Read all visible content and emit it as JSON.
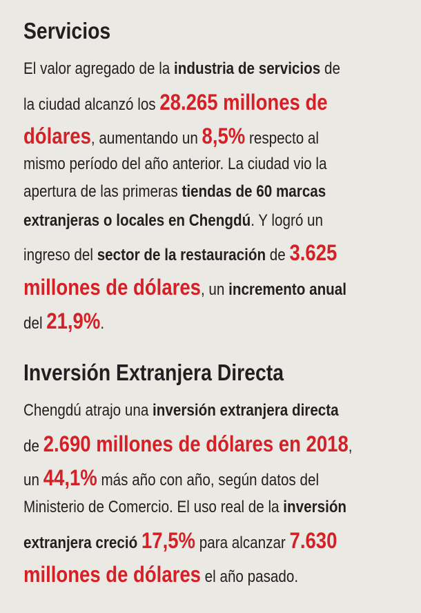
{
  "sections": [
    {
      "title": "Servicios",
      "lines": [
        [
          {
            "text": "El valor agregado de la "
          },
          {
            "text": "industria de servicios",
            "bold": true
          },
          {
            "text": " de"
          }
        ],
        [
          {
            "text": "la ciudad alcanzó los "
          },
          {
            "text": "28.265 millones de",
            "bold": true,
            "color": "#d42027"
          }
        ],
        [
          {
            "text": "dólares",
            "bold": true,
            "color": "#d42027"
          },
          {
            "text": ", aumentando un "
          },
          {
            "text": "8,5%",
            "bold": true,
            "color": "#d42027"
          },
          {
            "text": " respecto al"
          }
        ],
        [
          {
            "text": "mismo período del año anterior. La ciudad vio la"
          }
        ],
        [
          {
            "text": "apertura de las primeras "
          },
          {
            "text": "tiendas de 60 marcas",
            "bold": true
          }
        ],
        [
          {
            "text": "extranjeras o locales en Chengdú",
            "bold": true
          },
          {
            "text": ". Y logró un"
          }
        ],
        [
          {
            "text": "ingreso del "
          },
          {
            "text": "sector de la restauración",
            "bold": true
          },
          {
            "text": " de "
          },
          {
            "text": "3.625",
            "bold": true,
            "color": "#d42027"
          }
        ],
        [
          {
            "text": "millones de dólares",
            "bold": true,
            "color": "#d42027"
          },
          {
            "text": ", un "
          },
          {
            "text": "incremento anual",
            "bold": true
          }
        ],
        [
          {
            "text": "del "
          },
          {
            "text": "21,9%",
            "bold": true,
            "color": "#d42027"
          },
          {
            "text": "."
          }
        ]
      ]
    },
    {
      "title": "Inversión Extranjera Directa",
      "lines": [
        [
          {
            "text": "Chengdú atrajo una "
          },
          {
            "text": "inversión extranjera directa",
            "bold": true
          }
        ],
        [
          {
            "text": "de "
          },
          {
            "text": "2.690 millones de dólares en 2018",
            "bold": true,
            "color": "#d42027"
          },
          {
            "text": ","
          }
        ],
        [
          {
            "text": "un "
          },
          {
            "text": "44,1%",
            "bold": true,
            "color": "#d42027"
          },
          {
            "text": " más año con año, según datos del"
          }
        ],
        [
          {
            "text": "Ministerio de Comercio. El uso real de la "
          },
          {
            "text": "inversión",
            "bold": true
          }
        ],
        [
          {
            "text": "extranjera creció",
            "bold": true
          },
          {
            "text": " "
          },
          {
            "text": "17,5%",
            "bold": true,
            "color": "#d42027"
          },
          {
            "text": " para alcanzar "
          },
          {
            "text": "7.630",
            "bold": true,
            "color": "#d42027"
          }
        ],
        [
          {
            "text": "millones de dólares",
            "bold": true,
            "color": "#d42027"
          },
          {
            "text": " el año pasado."
          }
        ]
      ]
    }
  ]
}
